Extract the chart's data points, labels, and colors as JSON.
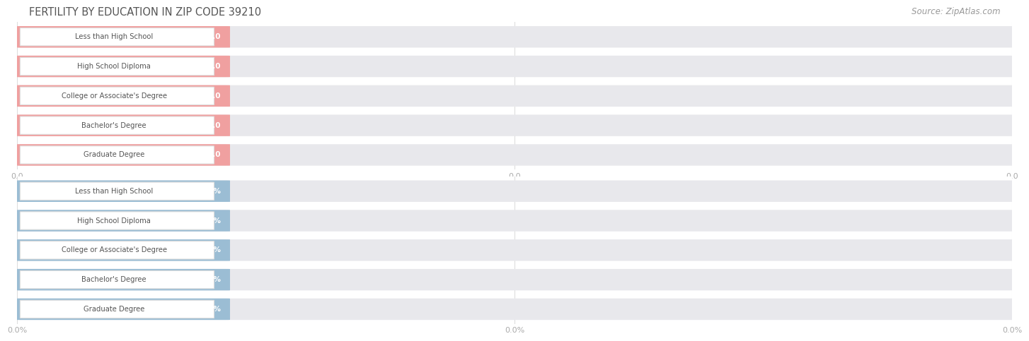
{
  "title": "FERTILITY BY EDUCATION IN ZIP CODE 39210",
  "source": "Source: ZipAtlas.com",
  "categories": [
    "Less than High School",
    "High School Diploma",
    "College or Associate's Degree",
    "Bachelor's Degree",
    "Graduate Degree"
  ],
  "values_top": [
    0.0,
    0.0,
    0.0,
    0.0,
    0.0
  ],
  "values_bottom": [
    0.0,
    0.0,
    0.0,
    0.0,
    0.0
  ],
  "bar_color_top": "#f0a0a0",
  "bar_color_bottom": "#9bbdd4",
  "bar_bg_color": "#e8e8ec",
  "label_bg_color": "#ffffff",
  "value_text_color_top": "#ffffff",
  "value_text_color_bottom": "#ffffff",
  "axis_text_color": "#aaaaaa",
  "title_color": "#555555",
  "source_color": "#999999",
  "cat_text_color": "#555555",
  "xtick_labels_top": [
    "0.0",
    "0.0",
    "0.0"
  ],
  "xtick_labels_bottom": [
    "0.0%",
    "0.0%",
    "0.0%"
  ],
  "background_color": "#ffffff",
  "grid_color": "#dddddd"
}
